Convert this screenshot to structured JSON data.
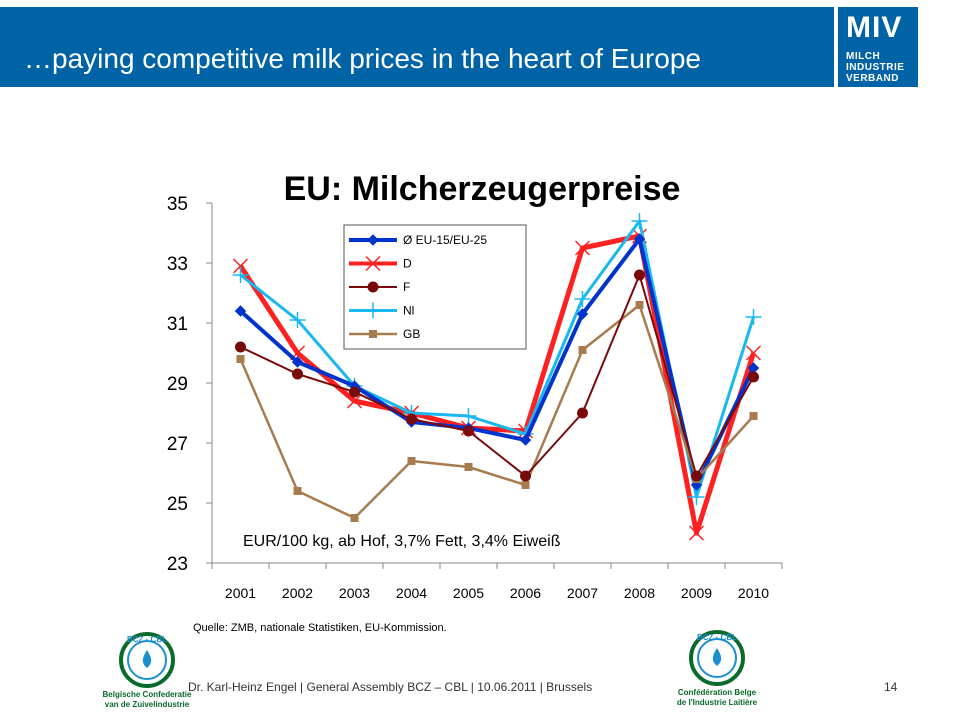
{
  "header": {
    "title": "…paying competitive milk prices in the heart of Europe",
    "logo_big": "MIV",
    "logo_lines": [
      "MILCH",
      "INDUSTRIE",
      "VERBAND"
    ]
  },
  "chart_data": {
    "type": "line",
    "title": "EU: Milcherzeugerpreise",
    "annotation": "EUR/100 kg, ab Hof, 3,7% Fett, 3,4% Eiweiß",
    "source": "Quelle: ZMB, nationale Statistiken, EU-Kommission.",
    "categories": [
      "2001",
      "2002",
      "2003",
      "2004",
      "2005",
      "2006",
      "2007",
      "2008",
      "2009",
      "2010"
    ],
    "ylim": [
      23,
      35
    ],
    "yticks": [
      "23",
      "25",
      "27",
      "29",
      "31",
      "33",
      "35"
    ],
    "grid": false,
    "legend_position": "top-center",
    "series": [
      {
        "name": "Ø EU-15/EU-25",
        "color": "#0033cc",
        "marker": "diamond",
        "values": [
          31.4,
          29.7,
          28.9,
          27.7,
          27.5,
          27.1,
          31.3,
          33.8,
          25.6,
          29.5
        ]
      },
      {
        "name": "D",
        "color": "#ff2020",
        "marker": "x",
        "values": [
          32.9,
          30.0,
          28.4,
          28.0,
          27.5,
          27.4,
          33.5,
          33.9,
          24.0,
          30.0
        ]
      },
      {
        "name": "F",
        "color": "#7a0a0a",
        "marker": "circle",
        "values": [
          30.2,
          29.3,
          28.7,
          27.8,
          27.4,
          25.9,
          28.0,
          32.6,
          25.9,
          29.2
        ]
      },
      {
        "name": "Nl",
        "color": "#1ab8f0",
        "marker": "plus",
        "values": [
          32.6,
          31.1,
          28.9,
          28.0,
          27.9,
          27.3,
          31.8,
          34.4,
          25.2,
          31.2
        ]
      },
      {
        "name": "GB",
        "color": "#a87b4f",
        "marker": "square",
        "values": [
          29.8,
          25.4,
          24.5,
          26.4,
          26.2,
          25.6,
          30.1,
          31.6,
          25.8,
          27.9
        ]
      }
    ]
  },
  "footer": {
    "text": "Dr. Karl-Heinz Engel | General Assembly BCZ – CBL | 10.06.2011 | Brussels",
    "page_number": "14",
    "logo_left_ring": "BCZ · CBL",
    "logo_left_sub": [
      "Belgische Confederatie",
      "van de Zuivelindustrie"
    ],
    "logo_right_ring": "BCZ · CBL",
    "logo_right_sub": [
      "Confédération Belge",
      "de l'Industrie Laitière"
    ]
  },
  "colors": {
    "banner": "#0063a6",
    "logo_green": "#0a6a2a",
    "logo_blue": "#1a8fd0"
  }
}
